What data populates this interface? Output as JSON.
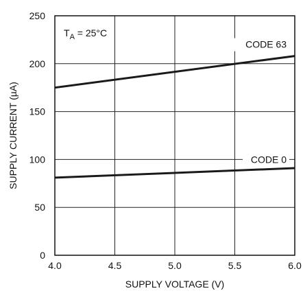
{
  "chart_data": {
    "type": "line",
    "xlabel": "SUPPLY VOLTAGE (V)",
    "ylabel": "SUPPLY CURRENT (µA)",
    "xlim": [
      4.0,
      6.0
    ],
    "ylim": [
      0,
      250
    ],
    "grid": true,
    "x_ticks": [
      4.0,
      4.5,
      5.0,
      5.5,
      6.0
    ],
    "x_tick_labels": [
      "4.0",
      "4.5",
      "5.0",
      "5.5",
      "6.0"
    ],
    "y_ticks": [
      0,
      50,
      100,
      150,
      200,
      250
    ],
    "y_tick_labels": [
      "0",
      "50",
      "100",
      "150",
      "200",
      "250"
    ],
    "annotation": {
      "main": "T",
      "sub": "A",
      "rest": " = 25°C"
    },
    "series": [
      {
        "name": "CODE 63",
        "x": [
          4.0,
          6.0
        ],
        "y": [
          175,
          208
        ]
      },
      {
        "name": "CODE 0",
        "x": [
          4.0,
          6.0
        ],
        "y": [
          81,
          91
        ]
      }
    ],
    "colors": {
      "line": "#1a1a1a",
      "grid": "#222222",
      "background": "#ffffff"
    }
  }
}
